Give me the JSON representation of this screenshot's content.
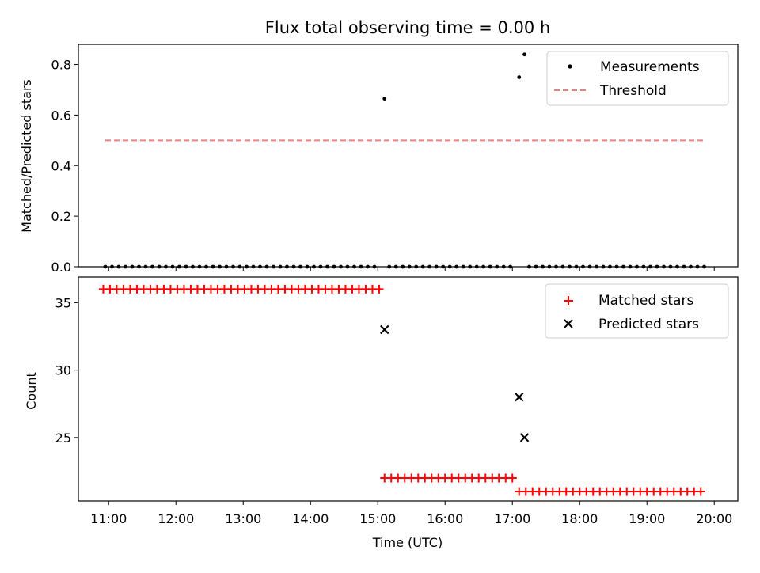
{
  "chart_data": [
    {
      "type": "scatter",
      "title": "Flux total observing time = 0.00 h",
      "xlabel": "",
      "ylabel": "Matched/Predicted stars",
      "ylim": [
        0,
        0.88
      ],
      "yticks": [
        "0.0",
        "0.2",
        "0.4",
        "0.6",
        "0.8"
      ],
      "xlim": [
        10.55,
        20.35
      ],
      "legend_position": "top-right",
      "series": [
        {
          "name": "Measurements",
          "marker": "dot",
          "color": "#000000",
          "segments": [
            {
              "start": 10.95,
              "end": 15.0,
              "step": 0.1,
              "value": 0
            },
            {
              "start": 15.17,
              "end": 17.0,
              "step": 0.1,
              "value": 0
            },
            {
              "start": 17.25,
              "end": 19.85,
              "step": 0.1,
              "value": 0
            }
          ],
          "points": [
            {
              "x": 15.1,
              "y": 0.665
            },
            {
              "x": 17.1,
              "y": 0.75
            },
            {
              "x": 17.18,
              "y": 0.84
            }
          ]
        },
        {
          "name": "Threshold",
          "style": "dashed",
          "color": "#f08080",
          "x": [
            10.95,
            19.85
          ],
          "y": [
            0.5,
            0.5
          ]
        }
      ]
    },
    {
      "type": "scatter",
      "title": "",
      "xlabel": "Time (UTC)",
      "ylabel": "Count",
      "ylim": [
        20.3,
        36.9
      ],
      "yticks": [
        "25",
        "30",
        "35"
      ],
      "xlim": [
        10.55,
        20.35
      ],
      "xticks": [
        "11:00",
        "12:00",
        "13:00",
        "14:00",
        "15:00",
        "16:00",
        "17:00",
        "18:00",
        "19:00",
        "20:00"
      ],
      "legend_position": "top-right",
      "series": [
        {
          "name": "Matched stars",
          "marker": "plus",
          "color": "#ff0000",
          "segments": [
            {
              "start": 10.92,
              "end": 15.02,
              "step": 0.1,
              "value": 36
            },
            {
              "start": 15.1,
              "end": 17.05,
              "step": 0.1,
              "value": 22
            },
            {
              "start": 17.1,
              "end": 19.85,
              "step": 0.1,
              "value": 21
            }
          ]
        },
        {
          "name": "Predicted stars",
          "marker": "x",
          "color": "#000000",
          "points": [
            {
              "x": 15.1,
              "y": 33
            },
            {
              "x": 17.1,
              "y": 28
            },
            {
              "x": 17.18,
              "y": 25
            }
          ]
        }
      ]
    }
  ],
  "colors": {
    "threshold": "#f08080",
    "matched": "#ff0000",
    "predicted": "#000000",
    "measurement": "#000000"
  }
}
